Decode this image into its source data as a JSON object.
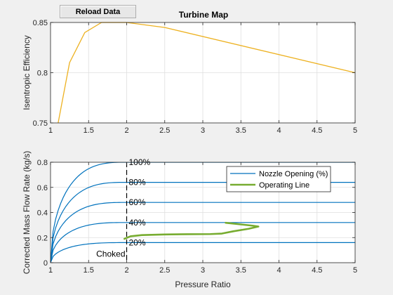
{
  "toolbar": {
    "reload_label": "Reload Data"
  },
  "chart_data": [
    {
      "type": "line",
      "title": "Turbine Map",
      "xlabel": "",
      "ylabel": "Isentropic Efficiency",
      "xlim": [
        1,
        5
      ],
      "ylim": [
        0.75,
        0.85
      ],
      "grid": true,
      "xticks": [
        1,
        1.5,
        2,
        2.5,
        3,
        3.5,
        4,
        4.5,
        5
      ],
      "xtick_labels": [
        "1",
        "1.5",
        "2",
        "2.5",
        "3",
        "3.5",
        "4",
        "4.5",
        "5"
      ],
      "yticks": [
        0.75,
        0.8,
        0.85
      ],
      "ytick_labels": [
        "0.75",
        "0.8",
        "0.85"
      ],
      "series": [
        {
          "color": "#EDB120",
          "points": [
            [
              1.1,
              0.75
            ],
            [
              1.25,
              0.81
            ],
            [
              1.45,
              0.84
            ],
            [
              1.67,
              0.85
            ],
            [
              2.0,
              0.85
            ],
            [
              2.5,
              0.845
            ],
            [
              5.0,
              0.8
            ]
          ]
        }
      ]
    },
    {
      "type": "line",
      "xlabel": "Pressure Ratio",
      "ylabel": "Corrected Mass Flow Rate (kg/s)",
      "xlim": [
        1,
        5
      ],
      "ylim": [
        0,
        0.8
      ],
      "grid": true,
      "xticks": [
        1,
        1.5,
        2,
        2.5,
        3,
        3.5,
        4,
        4.5,
        5
      ],
      "xtick_labels": [
        "1",
        "1.5",
        "2",
        "2.5",
        "3",
        "3.5",
        "4",
        "4.5",
        "5"
      ],
      "yticks": [
        0,
        0.2,
        0.4,
        0.6,
        0.8
      ],
      "ytick_labels": [
        "0",
        "0.2",
        "0.4",
        "0.6",
        "0.8"
      ],
      "legend": {
        "position": "top-right",
        "entries": [
          "Nozzle Opening (%)",
          "Operating Line"
        ]
      },
      "nozzle_color": "#0072BD",
      "operating_color": "#77AC30",
      "nozzle_curves": [
        {
          "label": "20%",
          "max_flow": 0.16
        },
        {
          "label": "40%",
          "max_flow": 0.32
        },
        {
          "label": "60%",
          "max_flow": 0.48
        },
        {
          "label": "80%",
          "max_flow": 0.64
        },
        {
          "label": "100%",
          "max_flow": 0.8
        }
      ],
      "choke_pressure_ratio": 2.0,
      "choked_label": "Choked",
      "operating_line": [
        [
          1.97,
          0.19
        ],
        [
          2.05,
          0.21
        ],
        [
          2.2,
          0.22
        ],
        [
          2.5,
          0.225
        ],
        [
          2.8,
          0.227
        ],
        [
          3.1,
          0.228
        ],
        [
          3.25,
          0.232
        ],
        [
          3.4,
          0.25
        ],
        [
          3.6,
          0.27
        ],
        [
          3.73,
          0.288
        ],
        [
          3.65,
          0.295
        ],
        [
          3.5,
          0.305
        ],
        [
          3.3,
          0.318
        ]
      ]
    }
  ]
}
